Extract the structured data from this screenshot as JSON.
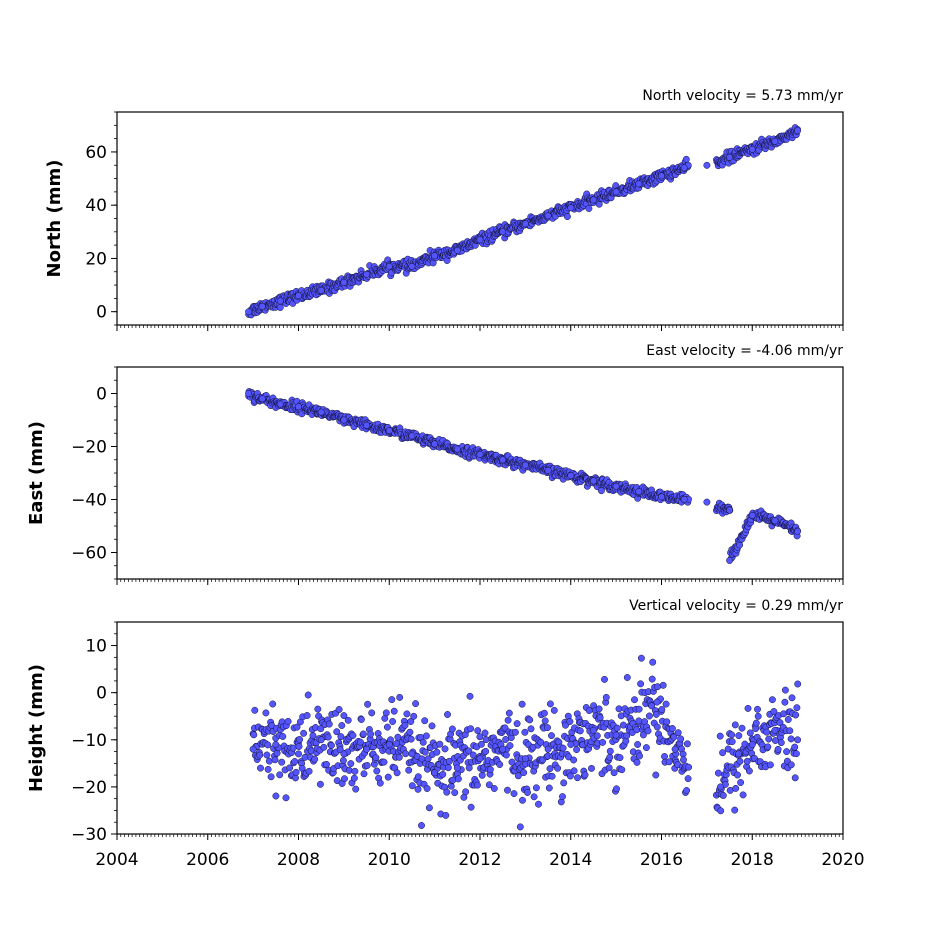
{
  "chart_data": [
    {
      "type": "scatter",
      "title": "North velocity = 5.73 mm/yr",
      "xlabel": "",
      "ylabel": "North (mm)",
      "xlim": [
        2004,
        2020
      ],
      "ylim": [
        -5,
        75
      ],
      "yticks": [
        0,
        20,
        40,
        60
      ],
      "ytick_labels": [
        "0",
        "20",
        "40",
        "60"
      ],
      "xtick_labels": [],
      "marker_color": "#5555ff",
      "series": [
        {
          "x": [
            2006.9,
            2007.2,
            2007.6,
            2008.0,
            2008.5,
            2009.0,
            2009.5,
            2010.0,
            2010.5,
            2011.0,
            2011.5,
            2012.0,
            2012.5,
            2013.0,
            2013.5,
            2014.0,
            2014.5,
            2015.0,
            2015.5,
            2016.0,
            2016.5,
            2017.0,
            2017.5,
            2018.0,
            2018.5,
            2019.0
          ],
          "y": [
            0,
            2,
            4,
            6,
            8,
            11,
            14,
            17,
            17,
            21,
            23,
            27,
            30,
            33,
            36,
            39,
            42,
            45,
            48,
            51,
            54,
            55,
            58,
            61,
            64,
            68
          ]
        }
      ]
    },
    {
      "type": "scatter",
      "title": "East velocity = -4.06 mm/yr",
      "xlabel": "",
      "ylabel": "East (mm)",
      "xlim": [
        2004,
        2020
      ],
      "ylim": [
        -70,
        10
      ],
      "yticks": [
        0,
        -20,
        -40,
        -60
      ],
      "ytick_labels": [
        "0",
        "−20",
        "−40",
        "−60"
      ],
      "xtick_labels": [],
      "marker_color": "#5555ff",
      "series": [
        {
          "x": [
            2006.9,
            2007.2,
            2007.6,
            2008.0,
            2008.5,
            2009.0,
            2009.5,
            2010.0,
            2010.5,
            2011.0,
            2011.5,
            2012.0,
            2012.5,
            2013.0,
            2013.5,
            2014.0,
            2014.5,
            2015.0,
            2015.5,
            2016.0,
            2016.5,
            2017.0,
            2017.5,
            2017.5,
            2018.0,
            2018.5,
            2019.0
          ],
          "y": [
            0,
            -2,
            -4,
            -5,
            -7,
            -10,
            -12,
            -14,
            -16,
            -19,
            -21,
            -23,
            -25,
            -27,
            -29,
            -31,
            -33,
            -35,
            -37,
            -39,
            -40,
            -41,
            -44,
            -63,
            -46,
            -48,
            -52
          ]
        }
      ]
    },
    {
      "type": "scatter",
      "title": "Vertical velocity = 0.29 mm/yr",
      "xlabel": "",
      "ylabel": "Height (mm)",
      "xlim": [
        2004,
        2020
      ],
      "ylim": [
        -30,
        15
      ],
      "yticks": [
        10,
        0,
        -10,
        -20,
        -30
      ],
      "ytick_labels": [
        "10",
        "0",
        "−10",
        "−20",
        "−30"
      ],
      "xtick_labels": [
        "2004",
        "2006",
        "2008",
        "2010",
        "2012",
        "2014",
        "2016",
        "2018",
        "2020"
      ],
      "marker_color": "#5555ff",
      "series": [
        {
          "x": [
            2007.0,
            2007.5,
            2008.0,
            2008.5,
            2009.0,
            2009.5,
            2010.0,
            2010.5,
            2011.0,
            2011.5,
            2012.0,
            2012.5,
            2013.0,
            2013.5,
            2014.0,
            2014.5,
            2015.0,
            2015.5,
            2015.9,
            2016.3,
            2017.3,
            2017.7,
            2018.0,
            2018.5,
            2019.0
          ],
          "y": [
            -12,
            -11,
            -13,
            -10,
            -13,
            -12,
            -11,
            -13,
            -17,
            -16,
            -14,
            -12,
            -14,
            -12,
            -11,
            -8,
            -9,
            -6,
            -2,
            -12,
            -20,
            -13,
            -11,
            -8,
            -10
          ]
        }
      ]
    }
  ]
}
